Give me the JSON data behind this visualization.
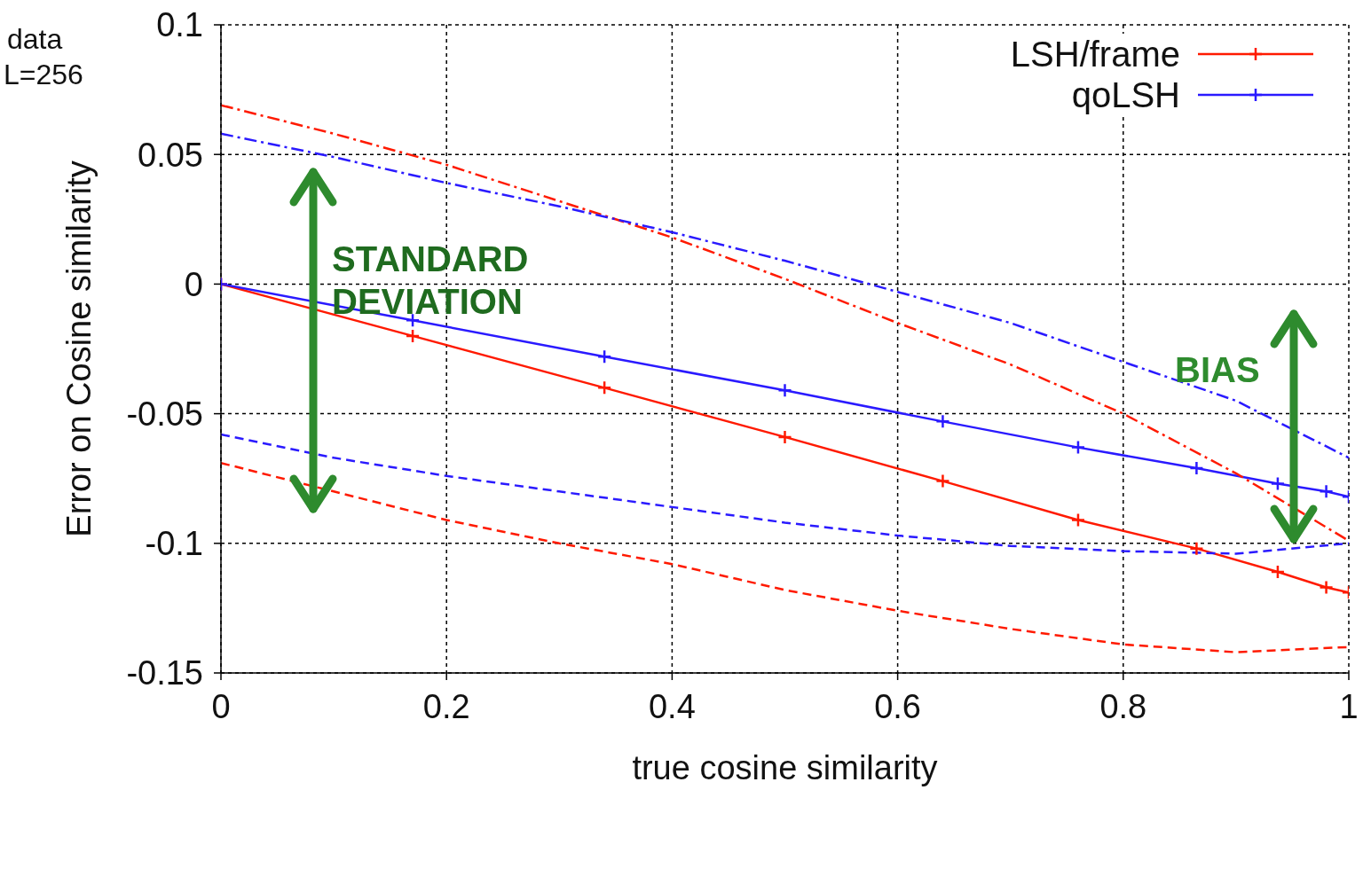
{
  "chart_data": {
    "type": "line",
    "xlabel": "true cosine similarity",
    "ylabel": "Error on Cosine similarity",
    "xlim": [
      0,
      1
    ],
    "xticks": [
      0,
      0.2,
      0.4,
      0.6,
      0.8,
      1
    ],
    "ylim": [
      -0.15,
      0.1
    ],
    "yticks": [
      -0.15,
      -0.1,
      -0.05,
      0,
      0.05,
      0.1
    ],
    "grid": true,
    "legend": "top right",
    "annotations": [
      "data",
      "L=256",
      "STANDARD DEVIATION",
      "BIAS"
    ],
    "series": [
      {
        "name": "LSH/frame",
        "color": "#ff1a00",
        "marker": "cross",
        "line_style": "solid",
        "x": [
          0,
          0.17,
          0.34,
          0.5,
          0.64,
          0.76,
          0.865,
          0.937,
          0.98,
          1
        ],
        "values": [
          0,
          -0.02,
          -0.04,
          -0.059,
          -0.076,
          -0.091,
          -0.102,
          -0.111,
          -0.117,
          -0.119
        ]
      },
      {
        "name": "qoLSH",
        "color": "#2a1aff",
        "marker": "cross",
        "line_style": "solid",
        "x": [
          0,
          0.17,
          0.34,
          0.5,
          0.64,
          0.76,
          0.865,
          0.937,
          0.98,
          1
        ],
        "values": [
          0,
          -0.014,
          -0.028,
          -0.041,
          -0.053,
          -0.063,
          -0.071,
          -0.077,
          -0.08,
          -0.082
        ]
      },
      {
        "color": "#ff1a00",
        "marker": "none",
        "line_style": "dashdot",
        "x": [
          0,
          0.1,
          0.2,
          0.3,
          0.4,
          0.5,
          0.6,
          0.7,
          0.8,
          0.9,
          1
        ],
        "values": [
          0.069,
          0.058,
          0.046,
          0.032,
          0.018,
          0.002,
          -0.015,
          -0.031,
          -0.05,
          -0.073,
          -0.099
        ]
      },
      {
        "color": "#ff1a00",
        "marker": "none",
        "line_style": "dashed",
        "x": [
          0,
          0.1,
          0.2,
          0.3,
          0.4,
          0.5,
          0.6,
          0.7,
          0.8,
          0.9,
          1
        ],
        "values": [
          -0.069,
          -0.08,
          -0.091,
          -0.1,
          -0.108,
          -0.118,
          -0.126,
          -0.133,
          -0.139,
          -0.142,
          -0.14
        ]
      },
      {
        "color": "#2a1aff",
        "marker": "none",
        "line_style": "dashdot",
        "x": [
          0,
          0.1,
          0.2,
          0.3,
          0.4,
          0.5,
          0.6,
          0.7,
          0.8,
          0.9,
          1
        ],
        "values": [
          0.058,
          0.049,
          0.039,
          0.03,
          0.02,
          0.009,
          -0.003,
          -0.015,
          -0.03,
          -0.045,
          -0.067
        ]
      },
      {
        "color": "#2a1aff",
        "marker": "none",
        "line_style": "dashed",
        "x": [
          0,
          0.1,
          0.2,
          0.3,
          0.4,
          0.5,
          0.6,
          0.7,
          0.8,
          0.9,
          1
        ],
        "values": [
          -0.058,
          -0.067,
          -0.074,
          -0.08,
          -0.086,
          -0.092,
          -0.097,
          -0.101,
          -0.103,
          -0.104,
          -0.1
        ]
      }
    ]
  }
}
